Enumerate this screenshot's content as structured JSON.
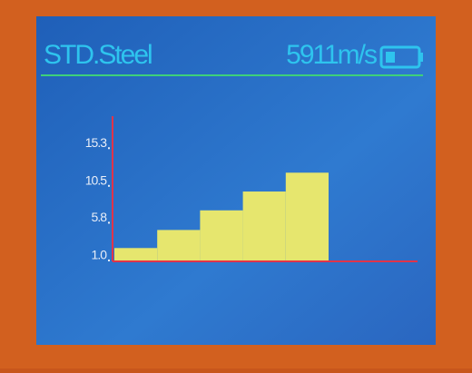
{
  "header": {
    "material": "STD.Steel",
    "velocity": "5911m/s"
  },
  "chart_data": {
    "type": "bar",
    "categories": [
      null,
      null,
      null,
      null,
      null
    ],
    "values": [
      2.0,
      4.3,
      6.8,
      9.2,
      11.6
    ],
    "color": "#e6e66e",
    "axis_color": "#e0344a",
    "ylim": [
      0.3,
      18.8
    ],
    "yticks": [
      {
        "value": 1,
        "label": "1.0"
      },
      5.8,
      10.5,
      15.3
    ]
  }
}
